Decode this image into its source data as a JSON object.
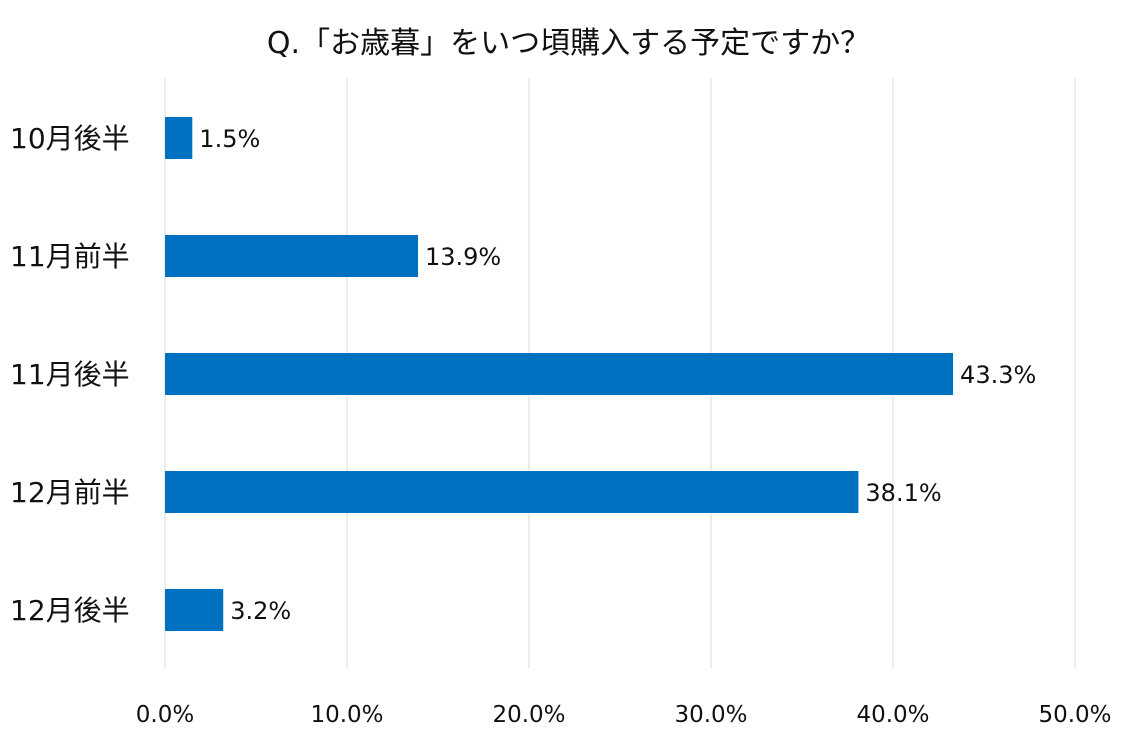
{
  "chart_data": {
    "type": "bar",
    "orientation": "horizontal",
    "title": "Q.「お歳暮」をいつ頃購入する予定ですか？",
    "categories": [
      "10月後半",
      "11月前半",
      "11月後半",
      "12月前半",
      "12月後半"
    ],
    "values": [
      1.5,
      13.9,
      43.3,
      38.1,
      3.2
    ],
    "data_labels": [
      "1.5%",
      "13.9%",
      "43.3%",
      "38.1%",
      "3.2%"
    ],
    "xlim": [
      0,
      50
    ],
    "x_ticks": [
      0,
      10,
      20,
      30,
      40,
      50
    ],
    "x_tick_labels": [
      "0.0%",
      "10.0%",
      "20.0%",
      "30.0%",
      "40.0%",
      "50.0%"
    ],
    "grid": true,
    "legend": "none",
    "colors": {
      "bar": "#0070C0",
      "grid": "#D9D9D9",
      "text": "#111111"
    }
  }
}
